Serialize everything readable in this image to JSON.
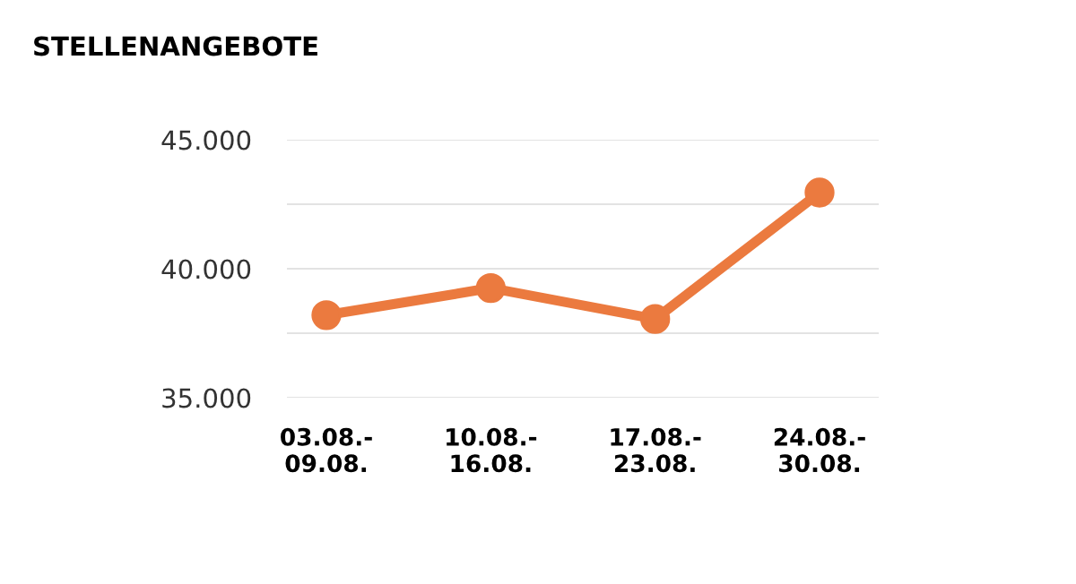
{
  "chart_data": {
    "type": "line",
    "title": "STELLENANGEBOTE",
    "categories": [
      "03.08.-\n09.08.",
      "10.08.-\n16.08.",
      "17.08.-\n23.08.",
      "24.08.-\n30.08."
    ],
    "series": [
      {
        "color": "#eb7a3f",
        "values": [
          38200,
          39250,
          38050,
          42950
        ]
      }
    ],
    "ylim": [
      35000,
      45000
    ],
    "yticks": [
      {
        "value": 35000,
        "label": "35.000"
      },
      {
        "value": 37500,
        "label": null
      },
      {
        "value": 40000,
        "label": "40.000"
      },
      {
        "value": 42500,
        "label": null
      },
      {
        "value": 45000,
        "label": "45.000"
      }
    ],
    "grid": "y",
    "marker": "circle",
    "line_style": "solid"
  }
}
